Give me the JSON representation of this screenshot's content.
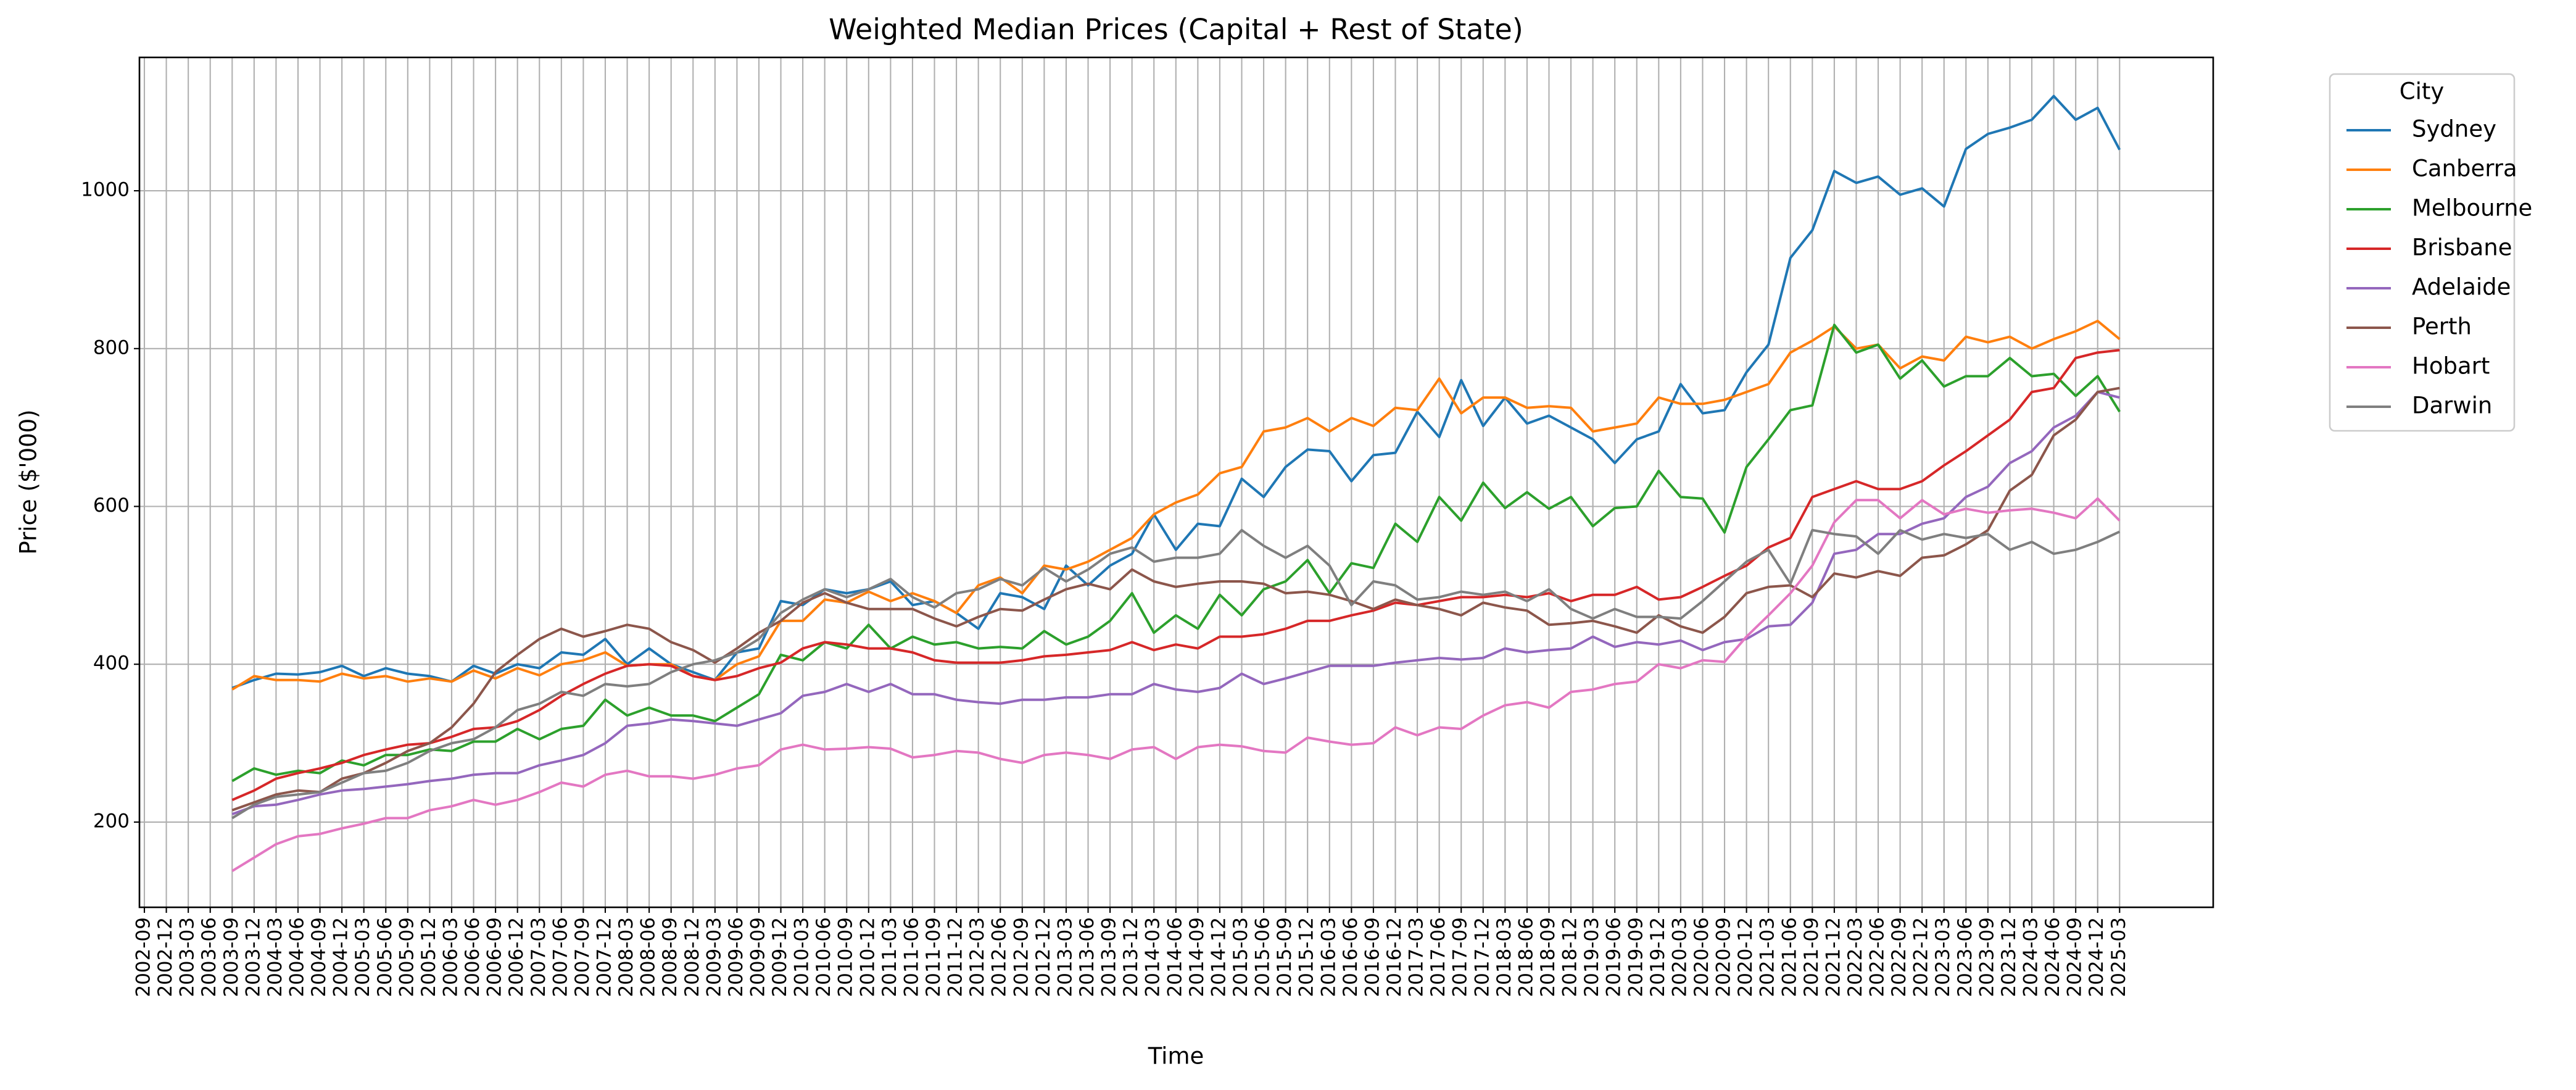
{
  "chart_data": {
    "type": "line",
    "title": "Weighted Median Prices (Capital + Rest of State)",
    "x_label": "Time",
    "y_label": "Price ($'000)",
    "legend_title": "City",
    "legend_position": "outside upper right",
    "grid": true,
    "ylim": [
      92,
      1169
    ],
    "yticks": [
      200,
      400,
      600,
      800,
      1000
    ],
    "categories": [
      "2002-09",
      "2002-12",
      "2003-03",
      "2003-06",
      "2003-09",
      "2003-12",
      "2004-03",
      "2004-06",
      "2004-09",
      "2004-12",
      "2005-03",
      "2005-06",
      "2005-09",
      "2005-12",
      "2006-03",
      "2006-06",
      "2006-09",
      "2006-12",
      "2007-03",
      "2007-06",
      "2007-09",
      "2007-12",
      "2008-03",
      "2008-06",
      "2008-09",
      "2008-12",
      "2009-03",
      "2009-06",
      "2009-09",
      "2009-12",
      "2010-03",
      "2010-06",
      "2010-09",
      "2010-12",
      "2011-03",
      "2011-06",
      "2011-09",
      "2011-12",
      "2012-03",
      "2012-06",
      "2012-09",
      "2012-12",
      "2013-03",
      "2013-06",
      "2013-09",
      "2013-12",
      "2014-03",
      "2014-06",
      "2014-09",
      "2014-12",
      "2015-03",
      "2015-06",
      "2015-09",
      "2015-12",
      "2016-03",
      "2016-06",
      "2016-09",
      "2016-12",
      "2017-03",
      "2017-06",
      "2017-09",
      "2017-12",
      "2018-03",
      "2018-06",
      "2018-09",
      "2018-12",
      "2019-03",
      "2019-06",
      "2019-09",
      "2019-12",
      "2020-03",
      "2020-06",
      "2020-09",
      "2020-12",
      "2021-03",
      "2021-06",
      "2021-09",
      "2021-12",
      "2022-03",
      "2022-06",
      "2022-09",
      "2022-12",
      "2023-03",
      "2023-06",
      "2023-09",
      "2023-12",
      "2024-03",
      "2024-06",
      "2024-09",
      "2024-12",
      "2025-03"
    ],
    "series": [
      {
        "name": "Sydney",
        "color": "#1f77b4",
        "values": [
          null,
          null,
          null,
          null,
          370,
          380,
          388,
          387,
          390,
          398,
          385,
          395,
          388,
          385,
          378,
          398,
          388,
          400,
          395,
          415,
          412,
          432,
          400,
          420,
          400,
          390,
          380,
          415,
          420,
          480,
          475,
          495,
          490,
          495,
          505,
          475,
          480,
          465,
          445,
          490,
          485,
          470,
          525,
          500,
          525,
          540,
          590,
          545,
          578,
          575,
          635,
          612,
          650,
          672,
          670,
          632,
          665,
          668,
          720,
          688,
          760,
          702,
          738,
          705,
          715,
          700,
          685,
          655,
          685,
          695,
          755,
          718,
          722,
          770,
          805,
          915,
          950,
          1025,
          1010,
          1018,
          995,
          1003,
          980,
          1053,
          1072,
          1080,
          1090,
          1120,
          1090,
          1105,
          1052
        ]
      },
      {
        "name": "Canberra",
        "color": "#ff7f0e",
        "values": [
          null,
          null,
          null,
          null,
          368,
          385,
          380,
          380,
          378,
          388,
          382,
          385,
          378,
          382,
          378,
          392,
          382,
          395,
          386,
          400,
          405,
          415,
          398,
          400,
          400,
          385,
          380,
          400,
          410,
          455,
          455,
          482,
          478,
          492,
          480,
          490,
          480,
          465,
          500,
          510,
          490,
          525,
          520,
          530,
          545,
          560,
          590,
          605,
          615,
          642,
          650,
          695,
          700,
          712,
          695,
          712,
          702,
          725,
          722,
          762,
          718,
          738,
          738,
          725,
          727,
          725,
          695,
          700,
          705,
          738,
          730,
          730,
          735,
          745,
          755,
          795,
          810,
          828,
          800,
          805,
          775,
          790,
          785,
          815,
          808,
          815,
          800,
          812,
          822,
          835,
          812
        ]
      },
      {
        "name": "Melbourne",
        "color": "#2ca02c",
        "values": [
          null,
          null,
          null,
          null,
          252,
          268,
          260,
          265,
          262,
          278,
          272,
          285,
          285,
          292,
          290,
          302,
          302,
          318,
          305,
          318,
          322,
          355,
          335,
          345,
          335,
          335,
          328,
          345,
          362,
          412,
          405,
          428,
          420,
          450,
          420,
          435,
          425,
          428,
          420,
          422,
          420,
          442,
          425,
          435,
          455,
          490,
          440,
          462,
          445,
          488,
          462,
          495,
          505,
          532,
          490,
          528,
          522,
          578,
          555,
          612,
          582,
          630,
          598,
          618,
          597,
          612,
          575,
          598,
          600,
          645,
          612,
          610,
          567,
          650,
          685,
          722,
          728,
          830,
          795,
          805,
          762,
          785,
          752,
          765,
          765,
          788,
          765,
          768,
          740,
          765,
          720
        ]
      },
      {
        "name": "Brisbane",
        "color": "#d62728",
        "values": [
          null,
          null,
          null,
          null,
          228,
          240,
          255,
          262,
          268,
          275,
          285,
          292,
          298,
          300,
          308,
          318,
          320,
          328,
          342,
          360,
          375,
          388,
          398,
          400,
          398,
          385,
          380,
          385,
          395,
          402,
          420,
          428,
          425,
          420,
          420,
          415,
          405,
          402,
          402,
          402,
          405,
          410,
          412,
          415,
          418,
          428,
          418,
          425,
          420,
          435,
          435,
          438,
          445,
          455,
          455,
          462,
          468,
          478,
          475,
          480,
          485,
          485,
          488,
          485,
          490,
          480,
          488,
          488,
          498,
          482,
          485,
          498,
          512,
          525,
          548,
          560,
          612,
          622,
          632,
          622,
          622,
          632,
          652,
          670,
          690,
          710,
          745,
          750,
          788,
          795,
          798
        ]
      },
      {
        "name": "Adelaide",
        "color": "#9467bd",
        "values": [
          null,
          null,
          null,
          null,
          210,
          220,
          222,
          228,
          235,
          240,
          242,
          245,
          248,
          252,
          255,
          260,
          262,
          262,
          272,
          278,
          285,
          300,
          322,
          325,
          330,
          328,
          325,
          322,
          330,
          338,
          360,
          365,
          375,
          365,
          375,
          362,
          362,
          355,
          352,
          350,
          355,
          355,
          358,
          358,
          362,
          362,
          375,
          368,
          365,
          370,
          388,
          375,
          382,
          390,
          398,
          398,
          398,
          402,
          405,
          408,
          406,
          408,
          420,
          415,
          418,
          420,
          435,
          422,
          428,
          425,
          430,
          418,
          428,
          432,
          448,
          450,
          478,
          540,
          545,
          565,
          565,
          578,
          585,
          612,
          625,
          655,
          670,
          700,
          715,
          745,
          738
        ]
      },
      {
        "name": "Perth",
        "color": "#8c564b",
        "values": [
          null,
          null,
          null,
          null,
          215,
          225,
          235,
          240,
          238,
          255,
          262,
          275,
          290,
          300,
          320,
          350,
          390,
          412,
          432,
          445,
          435,
          442,
          450,
          445,
          428,
          418,
          402,
          420,
          440,
          455,
          478,
          490,
          478,
          470,
          470,
          470,
          458,
          448,
          460,
          470,
          468,
          482,
          495,
          502,
          495,
          520,
          505,
          498,
          502,
          505,
          505,
          502,
          490,
          492,
          488,
          480,
          470,
          482,
          475,
          470,
          462,
          478,
          472,
          468,
          450,
          452,
          455,
          448,
          440,
          462,
          448,
          440,
          460,
          490,
          498,
          500,
          485,
          515,
          510,
          518,
          512,
          535,
          538,
          552,
          570,
          620,
          640,
          690,
          710,
          745,
          750
        ]
      },
      {
        "name": "Hobart",
        "color": "#e377c2",
        "values": [
          null,
          null,
          null,
          null,
          138,
          155,
          172,
          182,
          185,
          192,
          198,
          205,
          205,
          215,
          220,
          228,
          222,
          228,
          238,
          250,
          245,
          260,
          265,
          258,
          258,
          255,
          260,
          268,
          272,
          292,
          298,
          292,
          293,
          295,
          293,
          282,
          285,
          290,
          288,
          280,
          275,
          285,
          288,
          285,
          280,
          292,
          295,
          280,
          295,
          298,
          296,
          290,
          288,
          307,
          302,
          298,
          300,
          320,
          310,
          320,
          318,
          335,
          348,
          352,
          345,
          365,
          368,
          375,
          378,
          400,
          395,
          405,
          403,
          435,
          462,
          490,
          525,
          580,
          608,
          608,
          585,
          608,
          590,
          597,
          592,
          595,
          597,
          592,
          585,
          610,
          582
        ]
      },
      {
        "name": "Darwin",
        "color": "#7f7f7f",
        "values": [
          null,
          null,
          null,
          null,
          205,
          222,
          232,
          235,
          238,
          250,
          262,
          265,
          275,
          290,
          300,
          305,
          320,
          342,
          350,
          365,
          360,
          375,
          372,
          375,
          390,
          400,
          405,
          415,
          432,
          465,
          482,
          495,
          485,
          495,
          508,
          485,
          472,
          490,
          495,
          508,
          500,
          522,
          505,
          520,
          540,
          548,
          530,
          535,
          535,
          540,
          570,
          550,
          535,
          550,
          525,
          475,
          505,
          500,
          482,
          485,
          492,
          488,
          492,
          480,
          495,
          470,
          458,
          470,
          460,
          460,
          458,
          480,
          505,
          530,
          545,
          502,
          570,
          565,
          562,
          540,
          570,
          558,
          565,
          560,
          565,
          545,
          555,
          540,
          545,
          555,
          568
        ]
      }
    ]
  }
}
